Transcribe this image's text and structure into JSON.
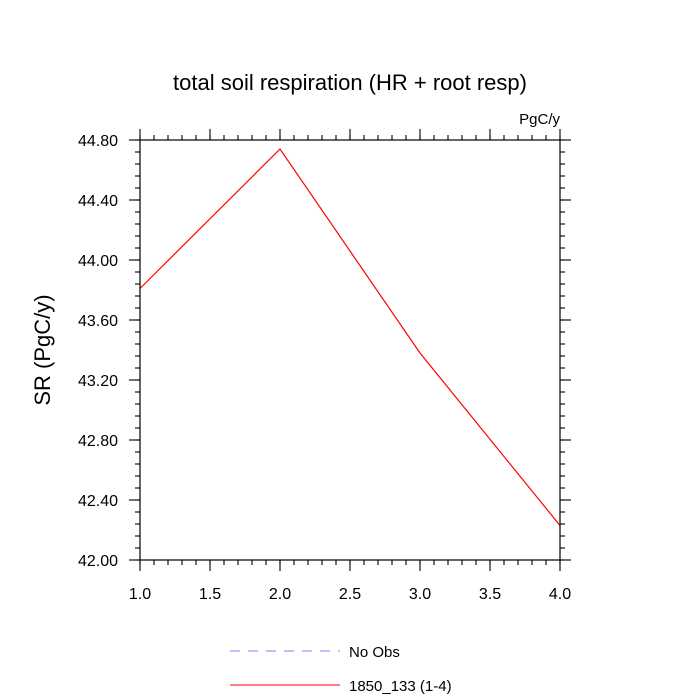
{
  "chart_data": {
    "type": "line",
    "title": "total soil respiration (HR + root resp)",
    "units": "PgC/y",
    "xlabel": "",
    "ylabel": "SR  (PgC/y)",
    "xlim": [
      1.0,
      4.0
    ],
    "ylim": [
      42.0,
      44.8
    ],
    "x_ticks": [
      1.0,
      1.5,
      2.0,
      2.5,
      3.0,
      3.5,
      4.0
    ],
    "x_tick_labels": [
      "1.0",
      "1.5",
      "2.0",
      "2.5",
      "3.0",
      "3.5",
      "4.0"
    ],
    "y_ticks": [
      42.0,
      42.4,
      42.8,
      43.2,
      43.6,
      44.0,
      44.4,
      44.8
    ],
    "y_tick_labels": [
      "42.00",
      "42.40",
      "42.80",
      "43.20",
      "43.60",
      "44.00",
      "44.40",
      "44.80"
    ],
    "grid": false,
    "legend_position": "bottom",
    "series": [
      {
        "name": "No Obs",
        "color": "#8080ff",
        "dashed": true,
        "x": [],
        "y": []
      },
      {
        "name": "1850_133 (1-4)",
        "color": "#ff0000",
        "dashed": false,
        "x": [
          1,
          2,
          3,
          4
        ],
        "y": [
          43.81,
          44.74,
          43.38,
          42.23
        ]
      }
    ]
  }
}
